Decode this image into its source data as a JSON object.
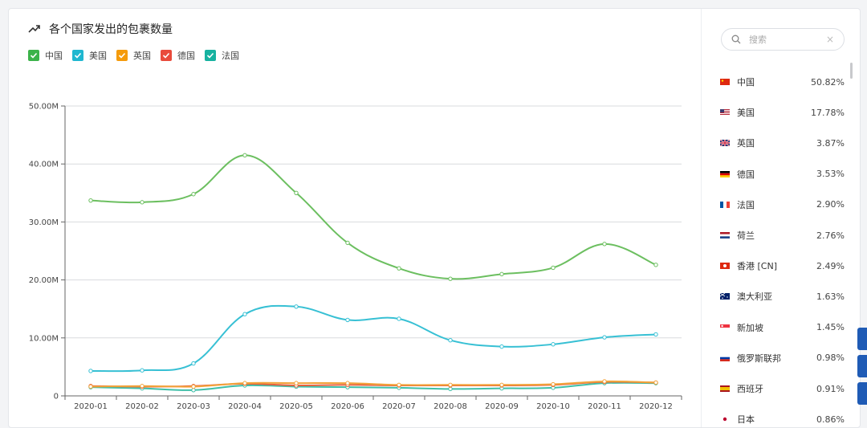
{
  "title": "各个国家发出的包裹数量",
  "legend": [
    {
      "name": "中国",
      "color": "#3cb34a"
    },
    {
      "name": "美国",
      "color": "#1fb7d0"
    },
    {
      "name": "英国",
      "color": "#f59b0b"
    },
    {
      "name": "德国",
      "color": "#e94b3c"
    },
    {
      "name": "法国",
      "color": "#17b2a0"
    }
  ],
  "chart_data": {
    "type": "line",
    "title": "各个国家发出的包裹数量",
    "xlabel": "",
    "ylabel": "",
    "ylim": [
      0,
      50000000
    ],
    "y_ticks": [
      "0",
      "10.00M",
      "20.00M",
      "30.00M",
      "40.00M",
      "50.00M"
    ],
    "y_tick_values": [
      0,
      10000000,
      20000000,
      30000000,
      40000000,
      50000000
    ],
    "categories": [
      "2020-01",
      "2020-02",
      "2020-03",
      "2020-04",
      "2020-05",
      "2020-06",
      "2020-07",
      "2020-08",
      "2020-09",
      "2020-10",
      "2020-11",
      "2020-12"
    ],
    "grid": true,
    "legend_position": "top-left",
    "series": [
      {
        "name": "中国",
        "color": "#6cbf60",
        "values": [
          33700000,
          33400000,
          34800000,
          41500000,
          35000000,
          26400000,
          22000000,
          20200000,
          21000000,
          22100000,
          26200000,
          22600000
        ]
      },
      {
        "name": "美国",
        "color": "#37c0d4",
        "values": [
          4300000,
          4400000,
          5600000,
          14100000,
          15400000,
          13100000,
          13300000,
          9600000,
          8500000,
          8900000,
          10100000,
          10600000
        ]
      },
      {
        "name": "英国",
        "color": "#f2a33a",
        "values": [
          1600000,
          1700000,
          1600000,
          2200000,
          2200000,
          2200000,
          1900000,
          1900000,
          1900000,
          2000000,
          2500000,
          2300000
        ]
      },
      {
        "name": "德国",
        "color": "#e8613f",
        "values": [
          1700000,
          1600000,
          1700000,
          2100000,
          1800000,
          1900000,
          1800000,
          1800000,
          1800000,
          1900000,
          2400000,
          2300000
        ]
      },
      {
        "name": "法国",
        "color": "#3fbfa8",
        "values": [
          1500000,
          1300000,
          1000000,
          1800000,
          1600000,
          1500000,
          1400000,
          1200000,
          1300000,
          1400000,
          2200000,
          2200000
        ]
      }
    ]
  },
  "search": {
    "placeholder": "搜索",
    "clear": "×"
  },
  "countries": [
    {
      "name": "中国",
      "pct": "50.82%",
      "flag": "cn"
    },
    {
      "name": "美国",
      "pct": "17.78%",
      "flag": "us"
    },
    {
      "name": "英国",
      "pct": "3.87%",
      "flag": "gb"
    },
    {
      "name": "德国",
      "pct": "3.53%",
      "flag": "de"
    },
    {
      "name": "法国",
      "pct": "2.90%",
      "flag": "fr"
    },
    {
      "name": "荷兰",
      "pct": "2.76%",
      "flag": "nl"
    },
    {
      "name": "香港 [CN]",
      "pct": "2.49%",
      "flag": "hk"
    },
    {
      "name": "澳大利亚",
      "pct": "1.63%",
      "flag": "au"
    },
    {
      "name": "新加坡",
      "pct": "1.45%",
      "flag": "sg"
    },
    {
      "name": "俄罗斯联邦",
      "pct": "0.98%",
      "flag": "ru"
    },
    {
      "name": "西班牙",
      "pct": "0.91%",
      "flag": "es"
    },
    {
      "name": "日本",
      "pct": "0.86%",
      "flag": "jp"
    }
  ]
}
